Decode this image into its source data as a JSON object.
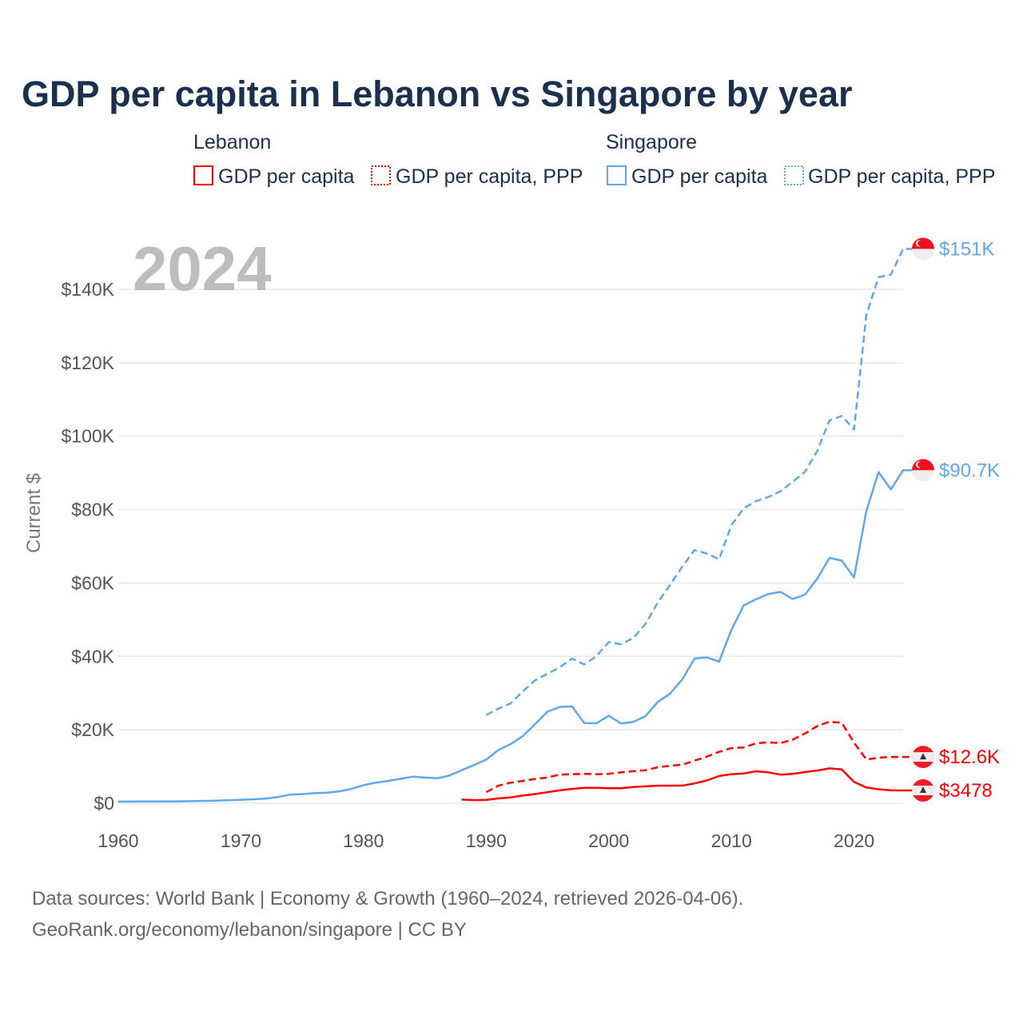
{
  "colors": {
    "lebanon": "#ff0000",
    "singapore": "#5fa8ea",
    "grid": "#e8e8e8"
  },
  "title": "GDP per capita in Lebanon vs Singapore by year",
  "legend": {
    "groups": [
      {
        "name": "Lebanon",
        "items": [
          "GDP per capita",
          "GDP per capita, PPP"
        ]
      },
      {
        "name": "Singapore",
        "items": [
          "GDP per capita",
          "GDP per capita, PPP"
        ]
      }
    ]
  },
  "year_overlay": "2024",
  "footer": {
    "line1": "Data sources: World Bank | Economy & Growth (1960–2024, retrieved 2026-04-06).",
    "line2": "GeoRank.org/economy/lebanon/singapore | CC BY"
  },
  "chart_data": {
    "type": "line",
    "title": "GDP per capita in Lebanon vs Singapore by year",
    "xlabel": "",
    "ylabel": "Current $",
    "xlim": [
      1960,
      2024
    ],
    "ylim": [
      0,
      150000
    ],
    "grid": true,
    "legend_position": "top",
    "x_ticks": [
      1960,
      1970,
      1980,
      1990,
      2000,
      2010,
      2020
    ],
    "x_tick_labels": [
      "1960",
      "1970",
      "1980",
      "1990",
      "2000",
      "2010",
      "2020"
    ],
    "y_ticks": [
      0,
      20000,
      40000,
      60000,
      80000,
      100000,
      120000,
      140000
    ],
    "y_tick_labels": [
      "$0",
      "$20K",
      "$40K",
      "$60K",
      "$80K",
      "$100K",
      "$120K",
      "$140K"
    ],
    "series": [
      {
        "name": "Singapore GDP per capita, PPP",
        "country": "Singapore",
        "dashed": true,
        "end_label": "$151K",
        "start_year": 1990,
        "values": [
          24000,
          25800,
          27200,
          30500,
          33500,
          35300,
          37000,
          39400,
          37800,
          40100,
          43900,
          43300,
          45000,
          48900,
          54700,
          59500,
          64500,
          69000,
          68000,
          66500,
          75800,
          80300,
          82300,
          83400,
          85000,
          87600,
          90300,
          96000,
          104300,
          105500,
          101800,
          133000,
          143300,
          144000,
          151000
        ]
      },
      {
        "name": "Singapore GDP per capita",
        "country": "Singapore",
        "dashed": false,
        "end_label": "$90.7K",
        "start_year": 1960,
        "values": [
          428,
          449,
          472,
          511,
          485,
          516,
          566,
          626,
          708,
          812,
          925,
          1071,
          1264,
          1685,
          2341,
          2490,
          2746,
          2846,
          3194,
          3901,
          4928,
          5596,
          6078,
          6633,
          7228,
          6994,
          6800,
          7539,
          9018,
          10394,
          11862,
          14502,
          16136,
          18302,
          21579,
          24937,
          26233,
          26376,
          21829,
          21797,
          23853,
          21700,
          22160,
          23730,
          27610,
          29870,
          33770,
          39430,
          39720,
          38580,
          47240,
          53890,
          55550,
          56970,
          57560,
          55650,
          56830,
          61180,
          66840,
          66070,
          61470,
          79600,
          90230,
          85500,
          90700
        ]
      },
      {
        "name": "Lebanon GDP per capita, PPP",
        "country": "Lebanon",
        "dashed": true,
        "end_label": "$12.6K",
        "start_year": 1990,
        "values": [
          3000,
          4800,
          5600,
          6100,
          6600,
          7000,
          7800,
          7900,
          8000,
          7900,
          8000,
          8400,
          8700,
          9000,
          9800,
          10200,
          10500,
          11600,
          12700,
          14000,
          15000,
          15200,
          16300,
          16600,
          16400,
          17300,
          19000,
          21000,
          22200,
          21900,
          16500,
          11900,
          12400,
          12600,
          12600
        ]
      },
      {
        "name": "Lebanon GDP per capita",
        "country": "Lebanon",
        "dashed": false,
        "end_label": "$3478",
        "start_year": 1988,
        "values": [
          1000,
          850,
          900,
          1300,
          1600,
          2100,
          2500,
          3000,
          3500,
          3900,
          4200,
          4200,
          4100,
          4100,
          4400,
          4600,
          4800,
          4800,
          4800,
          5400,
          6200,
          7400,
          7900,
          8100,
          8700,
          8400,
          7800,
          8000,
          8500,
          8900,
          9500,
          9200,
          5800,
          4300,
          3800,
          3500,
          3478
        ]
      }
    ]
  }
}
